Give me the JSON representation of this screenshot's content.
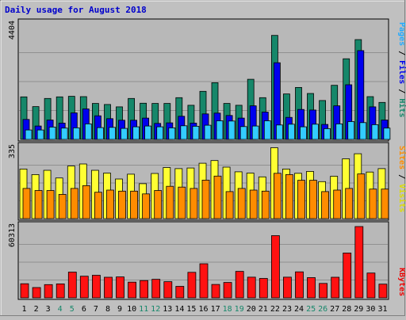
{
  "title": "Daily usage for August 2018",
  "colors": {
    "background": "#c0c0c0",
    "panel": "#b8b8b8",
    "title": "#0000cc",
    "hits": "#16876a",
    "files": "#0000ee",
    "pages": "#33ccff",
    "visits": "#ffff33",
    "sites": "#ff8c00",
    "kbytes": "#ff1111",
    "weekend_day": "#16876a",
    "weekday": "#000000"
  },
  "legend": {
    "top": [
      {
        "text": "Pages",
        "color": "#22aaff"
      },
      {
        "text": " / ",
        "color": "#000000"
      },
      {
        "text": "Files",
        "color": "#0000ee"
      },
      {
        "text": " / ",
        "color": "#000000"
      },
      {
        "text": "Hits",
        "color": "#16876a"
      }
    ],
    "middle": [
      {
        "text": "Sites",
        "color": "#ff8c00"
      },
      {
        "text": " / ",
        "color": "#000000"
      },
      {
        "text": "Visits",
        "color": "#dddd00"
      }
    ],
    "bottom": [
      {
        "text": "KBytes",
        "color": "#ee0000"
      }
    ]
  },
  "chart_data": {
    "type": "bar",
    "title": "Daily usage for August 2018",
    "categories": [
      "1",
      "2",
      "3",
      "4",
      "5",
      "6",
      "7",
      "8",
      "9",
      "10",
      "11",
      "12",
      "13",
      "14",
      "15",
      "16",
      "17",
      "18",
      "19",
      "20",
      "21",
      "22",
      "23",
      "24",
      "25",
      "26",
      "27",
      "28",
      "29",
      "30",
      "31"
    ],
    "weekend_days": [
      "4",
      "5",
      "11",
      "12",
      "18",
      "19",
      "25",
      "26"
    ],
    "panels": [
      {
        "name": "hits-files-pages",
        "ymax_label": "4404",
        "ylim": [
          0,
          4404
        ],
        "series": [
          {
            "name": "Hits",
            "values": [
              1620,
              1250,
              1560,
              1620,
              1640,
              1630,
              1370,
              1330,
              1240,
              1560,
              1380,
              1370,
              1370,
              1590,
              1300,
              1830,
              2160,
              1370,
              1300,
              2290,
              1590,
              3960,
              1730,
              1980,
              1750,
              1480,
              2060,
              3070,
              3800,
              1630,
              1410
            ]
          },
          {
            "name": "Files",
            "values": [
              760,
              510,
              740,
              620,
              1010,
              1160,
              900,
              790,
              730,
              730,
              810,
              610,
              630,
              880,
              620,
              970,
              1000,
              910,
              810,
              1280,
              1040,
              2920,
              840,
              1140,
              1120,
              570,
              1280,
              2080,
              3380,
              1240,
              740
            ]
          },
          {
            "name": "Pages",
            "values": [
              360,
              360,
              470,
              430,
              440,
              590,
              450,
              460,
              420,
              480,
              510,
              480,
              440,
              520,
              500,
              540,
              710,
              700,
              490,
              510,
              710,
              550,
              580,
              480,
              580,
              410,
              590,
              680,
              640,
              560,
              430
            ]
          }
        ]
      },
      {
        "name": "visits-sites",
        "ymax_label": "335",
        "ylim": [
          0,
          335
        ],
        "series": [
          {
            "name": "Visits",
            "values": [
              233,
              207,
              227,
              191,
              247,
              257,
              227,
              214,
              186,
              209,
              164,
              212,
              240,
              235,
              238,
              260,
              273,
              242,
              220,
              214,
              196,
              333,
              233,
              213,
              222,
              174,
              199,
              281,
              305,
              219,
              235
            ]
          },
          {
            "name": "Sites",
            "values": [
              142,
              132,
              132,
              114,
              142,
              155,
              124,
              134,
              129,
              129,
              116,
              132,
              152,
              148,
              142,
              181,
              200,
              127,
              142,
              134,
              129,
              213,
              207,
              180,
              180,
              127,
              134,
              142,
              210,
              139,
              139
            ]
          }
        ]
      },
      {
        "name": "kbytes",
        "ymax_label": "60313",
        "ylim": [
          0,
          60313
        ],
        "series": [
          {
            "name": "KBytes",
            "values": [
              11900,
              8700,
              11200,
              11800,
              21800,
              18300,
              19100,
              17400,
              17700,
              13300,
              14600,
              15700,
              13700,
              9700,
              21600,
              28800,
              11300,
              13000,
              22400,
              17500,
              16400,
              52600,
              17500,
              22000,
              17100,
              12200,
              17400,
              37900,
              63300,
              21000,
              11600
            ]
          }
        ]
      }
    ]
  }
}
